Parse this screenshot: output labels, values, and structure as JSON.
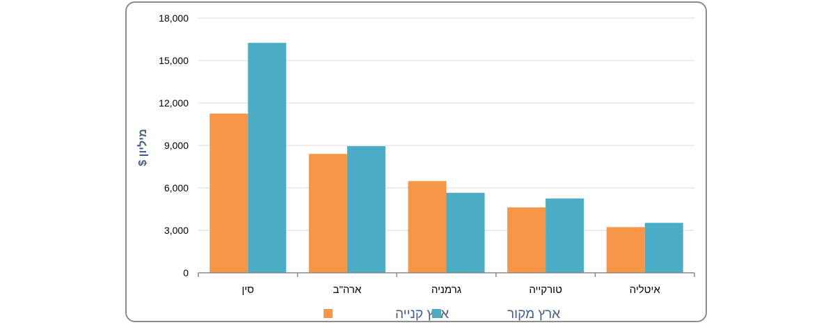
{
  "chart_data": {
    "type": "bar",
    "categories": [
      "סין",
      "ארה\"ב",
      "גרמניה",
      "טורקייה",
      "איטליה"
    ],
    "series": [
      {
        "name": "ארץ קנייה",
        "color": "#f79646",
        "values": [
          11250,
          8400,
          6480,
          4620,
          3230
        ]
      },
      {
        "name": "ארץ מקור",
        "color": "#4bacc6",
        "values": [
          16250,
          8950,
          5650,
          5250,
          3530
        ]
      }
    ],
    "ylabel": "מיליון $",
    "xlabel": "",
    "ylim": [
      0,
      18000
    ],
    "yticks": [
      0,
      3000,
      6000,
      9000,
      12000,
      15000,
      18000
    ],
    "ytick_labels": [
      "0",
      "3,000",
      "6,000",
      "9,000",
      "12,000",
      "15,000",
      "18,000"
    ],
    "grid": true,
    "legend_position": "bottom"
  }
}
